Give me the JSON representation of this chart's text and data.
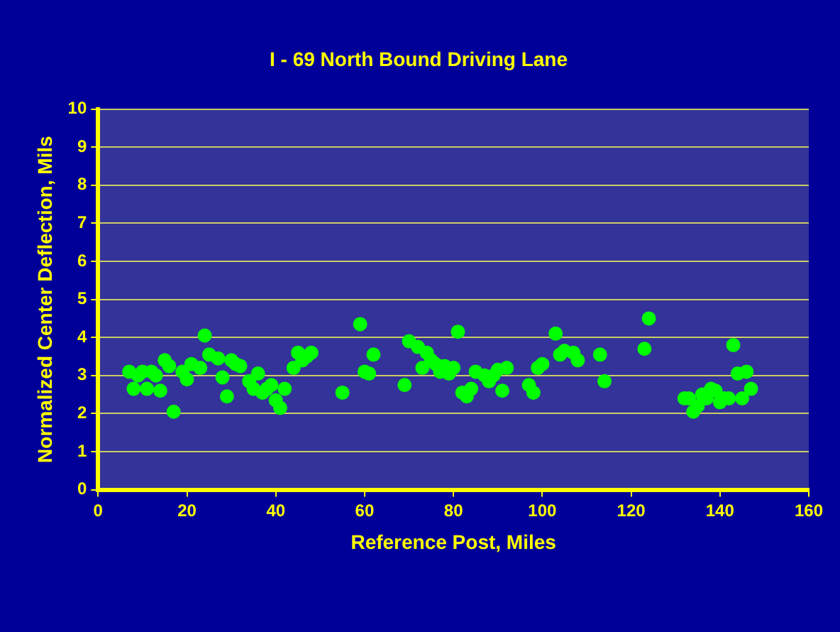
{
  "chart_data": {
    "type": "scatter",
    "title": "I - 69 North Bound Driving Lane",
    "xlabel": "Reference Post, Miles",
    "ylabel": "Normalized Center Deflection, Mils",
    "x": [
      7,
      8,
      9,
      10,
      11,
      12,
      13,
      14,
      15,
      16,
      17,
      19,
      20,
      21,
      23,
      24,
      25,
      27,
      28,
      29,
      30,
      31,
      32,
      34,
      35,
      36,
      37,
      38,
      39,
      40,
      41,
      42,
      44,
      45,
      46,
      47,
      48,
      55,
      59,
      60,
      61,
      62,
      69,
      70,
      72,
      73,
      74,
      75,
      76,
      77,
      78,
      79,
      80,
      81,
      82,
      83,
      84,
      85,
      87,
      88,
      89,
      90,
      91,
      92,
      97,
      98,
      99,
      100,
      103,
      104,
      105,
      107,
      108,
      113,
      114,
      123,
      124,
      132,
      133,
      134,
      135,
      136,
      137,
      138,
      139,
      140,
      141,
      142,
      143,
      144,
      145,
      146,
      147
    ],
    "series": [
      {
        "color": "#00ff00",
        "values": [
          3.1,
          2.65,
          3.0,
          3.1,
          2.65,
          3.1,
          3.0,
          2.6,
          3.4,
          3.25,
          2.05,
          3.1,
          2.9,
          3.3,
          3.2,
          4.05,
          3.55,
          3.45,
          2.95,
          2.45,
          3.4,
          3.3,
          3.25,
          2.85,
          2.65,
          3.05,
          2.55,
          2.65,
          2.75,
          2.35,
          2.15,
          2.65,
          3.2,
          3.6,
          3.4,
          3.5,
          3.6,
          2.55,
          4.35,
          3.1,
          3.05,
          3.55,
          2.75,
          3.9,
          3.75,
          3.2,
          3.6,
          3.4,
          3.3,
          3.1,
          3.25,
          3.05,
          3.2,
          4.15,
          2.55,
          2.45,
          2.65,
          3.1,
          3.0,
          2.85,
          3.0,
          3.15,
          2.6,
          3.2,
          2.75,
          2.55,
          3.2,
          3.3,
          4.1,
          3.55,
          3.65,
          3.6,
          3.4,
          3.55,
          2.85,
          3.7,
          4.5,
          2.4,
          2.4,
          2.05,
          2.2,
          2.5,
          2.4,
          2.65,
          2.6,
          2.3,
          2.4,
          2.4,
          3.8,
          3.05,
          2.4,
          3.1,
          2.65
        ]
      }
    ],
    "xlim": [
      0,
      160
    ],
    "xticks": [
      0,
      20,
      40,
      60,
      80,
      100,
      120,
      140,
      160
    ],
    "ylim": [
      0,
      10
    ],
    "yticks": [
      0,
      1,
      2,
      3,
      4,
      5,
      6,
      7,
      8,
      9,
      10
    ],
    "grid": "y",
    "legend": false,
    "marker": "circle"
  }
}
